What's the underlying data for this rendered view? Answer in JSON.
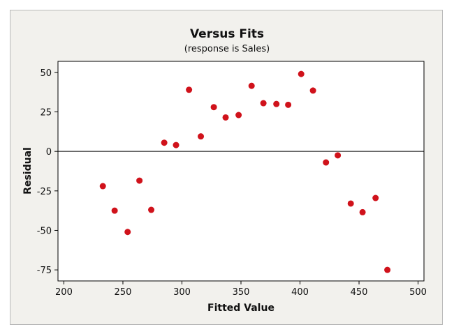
{
  "chart_data": {
    "type": "scatter",
    "title": "Versus Fits",
    "subtitle": "(response is Sales)",
    "xlabel": "Fitted Value",
    "ylabel": "Residual",
    "xlim": [
      195,
      505
    ],
    "ylim": [
      -82,
      57
    ],
    "xticks": [
      200,
      250,
      300,
      350,
      400,
      450,
      500
    ],
    "yticks": [
      50,
      25,
      0,
      -25,
      -50,
      -75
    ],
    "reference_line_y": 0,
    "grid": false,
    "point_color": "#d0121b",
    "points": [
      {
        "x": 233,
        "y": -22
      },
      {
        "x": 243,
        "y": -37.5
      },
      {
        "x": 254,
        "y": -51
      },
      {
        "x": 264,
        "y": -18.5
      },
      {
        "x": 274,
        "y": -37
      },
      {
        "x": 285,
        "y": 5.5
      },
      {
        "x": 295,
        "y": 4
      },
      {
        "x": 306,
        "y": 39
      },
      {
        "x": 316,
        "y": 9.5
      },
      {
        "x": 327,
        "y": 28
      },
      {
        "x": 337,
        "y": 21.5
      },
      {
        "x": 348,
        "y": 23
      },
      {
        "x": 359,
        "y": 41.5
      },
      {
        "x": 369,
        "y": 30.5
      },
      {
        "x": 380,
        "y": 30
      },
      {
        "x": 390,
        "y": 29.5
      },
      {
        "x": 401,
        "y": 49
      },
      {
        "x": 411,
        "y": 38.5
      },
      {
        "x": 422,
        "y": -7
      },
      {
        "x": 432,
        "y": -2.5
      },
      {
        "x": 443,
        "y": -33
      },
      {
        "x": 453,
        "y": -38.5
      },
      {
        "x": 464,
        "y": -29.5
      },
      {
        "x": 474,
        "y": -75
      }
    ]
  }
}
